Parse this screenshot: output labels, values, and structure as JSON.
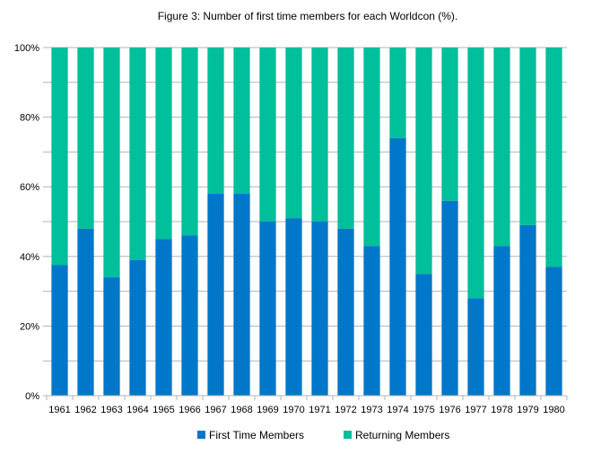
{
  "chart_data": {
    "type": "bar",
    "stacked": true,
    "title": "Figure 3: Number of first time members for each Worldcon (%).",
    "xlabel": "",
    "ylabel": "",
    "ylim": [
      0,
      100
    ],
    "y_ticks": [
      "0%",
      "20%",
      "40%",
      "60%",
      "80%",
      "100%"
    ],
    "grid": true,
    "legend_position": "bottom",
    "categories": [
      "1961",
      "1962",
      "1963",
      "1964",
      "1965",
      "1966",
      "1967",
      "1968",
      "1969",
      "1970",
      "1971",
      "1972",
      "1973",
      "1974",
      "1975",
      "1976",
      "1977",
      "1978",
      "1979",
      "1980"
    ],
    "series": [
      {
        "name": "First Time Members",
        "color": "#0077c8",
        "values": [
          37.5,
          48,
          34,
          39,
          45,
          46,
          58,
          58,
          50,
          51,
          50,
          48,
          43,
          74,
          35,
          56,
          28,
          43,
          49,
          37
        ]
      },
      {
        "name": "Returning Members",
        "color": "#00bf9b",
        "values": [
          62.5,
          52,
          66,
          61,
          55,
          54,
          42,
          42,
          50,
          49,
          50,
          52,
          57,
          26,
          65,
          44,
          72,
          57,
          51,
          63
        ]
      }
    ]
  }
}
